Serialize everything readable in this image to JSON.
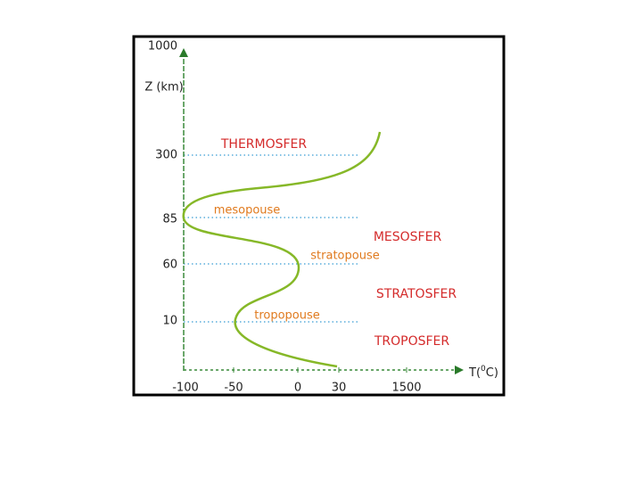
{
  "y_axis": {
    "label": "Z (km)",
    "ticks": [
      "1000",
      "300",
      "85",
      "60",
      "10"
    ]
  },
  "x_axis": {
    "label": {
      "prefix": "T(",
      "superscript": "0",
      "suffix": "C)"
    },
    "ticks": [
      "-100",
      "-50",
      "0",
      "30",
      "1500"
    ]
  },
  "layers": [
    "THERMOSFER",
    "MESOSFER",
    "STRATOSFER",
    "TROPOSFER"
  ],
  "pauses": [
    "mesopouse",
    "stratopouse",
    "tropopouse"
  ]
}
